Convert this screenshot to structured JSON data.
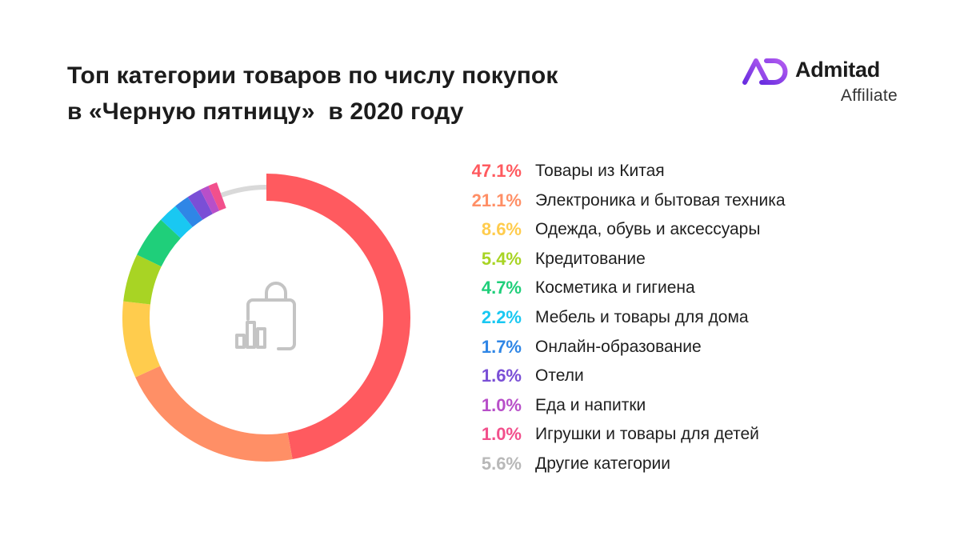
{
  "header": {
    "title_line1": "Топ категории товаров по числу покупок",
    "title_line2": "в «Черную пятницу»  в 2020 году"
  },
  "logo": {
    "brand": "Admitad",
    "sub": "Affiliate",
    "icon": "admitad-ad-logo-icon",
    "accent": "#7b3fe4"
  },
  "center_icon": "shopping-bag-bar-chart-icon",
  "chart_data": {
    "type": "pie",
    "variant": "donut",
    "start": "top",
    "direction": "clockwise",
    "title": "Топ категории товаров по числу покупок в «Черную пятницу»  в 2020 году",
    "legend_position": "right",
    "slices": [
      {
        "label": "Товары из Китая",
        "value": 47.1,
        "display": "47.1%",
        "color": "#ff5a5f"
      },
      {
        "label": "Электроника и бытовая техника",
        "value": 21.1,
        "display": "21.1%",
        "color": "#ff8f66"
      },
      {
        "label": "Одежда, обувь и аксессуары",
        "value": 8.6,
        "display": "8.6%",
        "color": "#ffcc4d"
      },
      {
        "label": "Кредитование",
        "value": 5.4,
        "display": "5.4%",
        "color": "#a8d424"
      },
      {
        "label": "Косметика и гигиена",
        "value": 4.7,
        "display": "4.7%",
        "color": "#1fcf7a"
      },
      {
        "label": "Мебель и товары для дома",
        "value": 2.2,
        "display": "2.2%",
        "color": "#19c8f2"
      },
      {
        "label": "Онлайн-образование",
        "value": 1.7,
        "display": "1.7%",
        "color": "#2f86e6"
      },
      {
        "label": "Отели",
        "value": 1.6,
        "display": "1.6%",
        "color": "#7a4fd6"
      },
      {
        "label": "Еда и напитки",
        "value": 1.0,
        "display": "1.0%",
        "color": "#b84fc9"
      },
      {
        "label": "Игрушки и товары для детей",
        "value": 1.0,
        "display": "1.0%",
        "color": "#f2508c"
      },
      {
        "label": "Другие категории",
        "value": 5.6,
        "display": "5.6%",
        "color": "#d9d9d9"
      }
    ]
  }
}
